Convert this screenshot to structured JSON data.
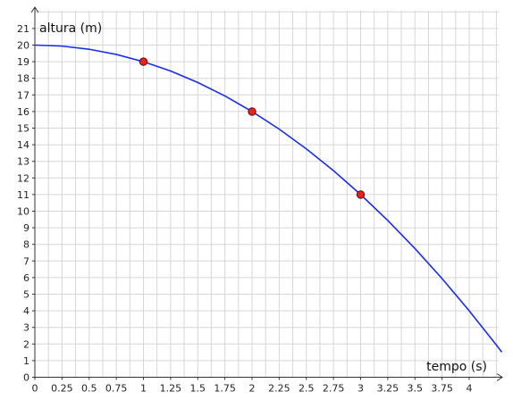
{
  "chart_data": {
    "type": "line",
    "xlabel": "tempo (s)",
    "ylabel": "altura (m)",
    "xlim": [
      0,
      4.3
    ],
    "ylim": [
      0,
      21.7
    ],
    "grid": true,
    "x_ticks": [
      0,
      0.25,
      0.5,
      0.75,
      1,
      1.25,
      1.5,
      1.75,
      2,
      2.25,
      2.5,
      2.75,
      3,
      3.25,
      3.5,
      3.75,
      4
    ],
    "x_tick_labels": [
      "0",
      "0.25",
      "0.5",
      "0.75",
      "1",
      "1.25",
      "1.5",
      "1.75",
      "2",
      "2.25",
      "2.5",
      "2.75",
      "3",
      "3.25",
      "3.5",
      "3.75",
      "4"
    ],
    "y_ticks": [
      0,
      1,
      2,
      3,
      4,
      5,
      6,
      7,
      8,
      9,
      10,
      11,
      12,
      13,
      14,
      15,
      16,
      17,
      18,
      19,
      20,
      21
    ],
    "y_tick_labels": [
      "0",
      "1",
      "2",
      "3",
      "4",
      "5",
      "6",
      "7",
      "8",
      "9",
      "10",
      "11",
      "12",
      "13",
      "14",
      "15",
      "16",
      "17",
      "18",
      "19",
      "20",
      "21"
    ],
    "series": [
      {
        "x": [
          0,
          0.25,
          0.5,
          0.75,
          1,
          1.25,
          1.5,
          1.75,
          2,
          2.25,
          2.5,
          2.75,
          3,
          3.25,
          3.5,
          3.75,
          4,
          4.25,
          4.3
        ],
        "y": [
          20,
          19.94,
          19.75,
          19.44,
          19,
          18.44,
          17.75,
          16.94,
          16,
          14.94,
          13.75,
          12.44,
          11,
          9.44,
          7.75,
          5.94,
          4,
          1.94,
          1.51
        ]
      }
    ],
    "points": [
      {
        "x": 1,
        "y": 19
      },
      {
        "x": 2,
        "y": 16
      },
      {
        "x": 3,
        "y": 11
      }
    ],
    "colors": {
      "curve": "#1a2cf0",
      "point_fill": "#e8231c",
      "point_stroke": "#5a0b08",
      "grid": "#d6d6d6",
      "axis": "#333333"
    }
  }
}
